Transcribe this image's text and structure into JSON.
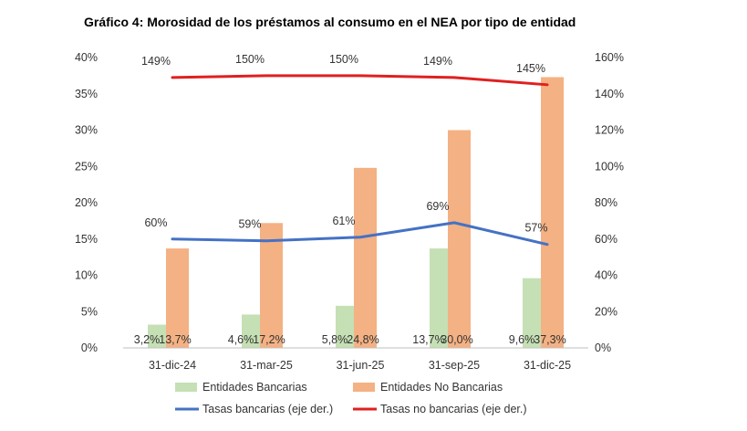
{
  "chart_data": {
    "type": "bar",
    "title": "Gráfico 4: Morosidad de los préstamos al consumo en el NEA por tipo de entidad",
    "categories": [
      "31-dic-24",
      "31-mar-25",
      "31-jun-25",
      "31-sep-25",
      "31-dic-25"
    ],
    "ylim_left": [
      0,
      40
    ],
    "ylim_right": [
      0,
      160
    ],
    "left_ticks": [
      "0%",
      "5%",
      "10%",
      "15%",
      "20%",
      "25%",
      "30%",
      "35%",
      "40%"
    ],
    "right_ticks": [
      "0%",
      "20%",
      "40%",
      "60%",
      "80%",
      "100%",
      "120%",
      "140%",
      "160%"
    ],
    "grid": false,
    "legend_position": "bottom",
    "series": [
      {
        "name": "Entidades Bancarias",
        "kind": "bar",
        "axis": "left",
        "color": "#c5e0b4",
        "values": [
          3.2,
          4.6,
          5.8,
          13.7,
          9.6
        ],
        "labels": [
          "3,2%",
          "4,6%",
          "5,8%",
          "13,7%",
          "9,6%"
        ]
      },
      {
        "name": "Entidades No Bancarias",
        "kind": "bar",
        "axis": "left",
        "color": "#f4b183",
        "values": [
          13.7,
          17.2,
          24.8,
          30.0,
          37.3
        ],
        "labels": [
          "13,7%",
          "17,2%",
          "24,8%",
          "30,0%",
          "37,3%"
        ]
      },
      {
        "name": "Tasas bancarias (eje der.)",
        "kind": "line",
        "axis": "right",
        "color": "#4472c4",
        "values": [
          60,
          59,
          61,
          69,
          57
        ],
        "labels": [
          "60%",
          "59%",
          "61%",
          "69%",
          "57%"
        ]
      },
      {
        "name": "Tasas no bancarias (eje der.)",
        "kind": "line",
        "axis": "right",
        "color": "#e02020",
        "values": [
          149,
          150,
          150,
          149,
          145
        ],
        "labels": [
          "149%",
          "150%",
          "150%",
          "149%",
          "145%"
        ]
      }
    ]
  }
}
